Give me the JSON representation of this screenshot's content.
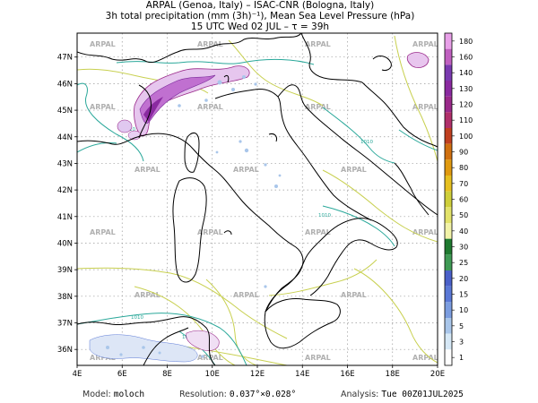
{
  "title": {
    "line1": "ARPAL (Genoa, Italy)  –  ISAC-CNR (Bologna, Italy)",
    "line2": "3h total precipitation (mm (3h)⁻¹), Mean Sea Level Pressure (hPa)",
    "line3": "15 UTC Wed 02 JUL  –  τ = 39h"
  },
  "axes": {
    "lat_labels": [
      "47N",
      "46N",
      "45N",
      "44N",
      "43N",
      "42N",
      "41N",
      "40N",
      "39N",
      "38N",
      "37N",
      "36N"
    ],
    "lat_values": [
      47,
      46,
      45,
      44,
      43,
      42,
      41,
      40,
      39,
      38,
      37,
      36
    ],
    "lon_labels": [
      "4E",
      "6E",
      "8E",
      "10E",
      "12E",
      "14E",
      "16E",
      "18E",
      "20E"
    ],
    "lon_values": [
      4,
      6,
      8,
      10,
      12,
      14,
      16,
      18,
      20
    ],
    "lat_range": [
      35.4,
      47.9
    ],
    "lon_range": [
      4,
      20
    ],
    "grid": "dotted"
  },
  "watermark": {
    "text": "ARPAL"
  },
  "isobars": {
    "label": "1010",
    "color": "#2aa89a"
  },
  "colorbar": {
    "levels": [
      "1",
      "3",
      "5",
      "10",
      "15",
      "20",
      "25",
      "30",
      "40",
      "50",
      "60",
      "70",
      "80",
      "90",
      "100",
      "110",
      "120",
      "130",
      "140",
      "160",
      "180"
    ],
    "colors": [
      "#ffffff",
      "#d6e8f6",
      "#a9c6ea",
      "#7b9de0",
      "#5a78d6",
      "#4a60c9",
      "#3f9a55",
      "#1f7a30",
      "#f2f3a8",
      "#e3e36a",
      "#cfcf3a",
      "#e6c020",
      "#e09a10",
      "#d07010",
      "#c04020",
      "#b0306a",
      "#9a2a8a",
      "#8a2aa0",
      "#7a3ab0",
      "#c060c0",
      "#e8a0e8"
    ]
  },
  "footer": {
    "model_label": "Model:",
    "model_value": "moloch",
    "resolution_label": "Resolution:",
    "resolution_value": "0.037°×0.028°",
    "analysis_label": "Analysis:",
    "analysis_value": "Tue 00Z01JUL2025"
  }
}
